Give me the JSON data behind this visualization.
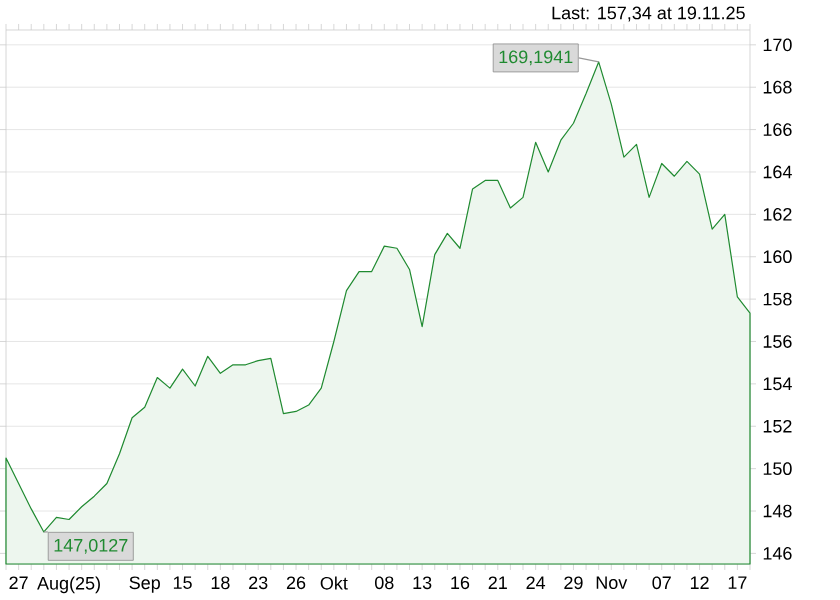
{
  "chart_data": {
    "type": "area",
    "categories": [
      null,
      "27",
      null,
      null,
      null,
      "Aug(25)",
      null,
      null,
      null,
      null,
      null,
      "Sep",
      null,
      null,
      "15",
      null,
      null,
      "18",
      null,
      null,
      "23",
      null,
      null,
      "26",
      null,
      null,
      "Okt",
      null,
      null,
      null,
      "08",
      null,
      null,
      "13",
      null,
      null,
      "16",
      null,
      null,
      "21",
      null,
      null,
      "24",
      null,
      null,
      "29",
      null,
      null,
      "Nov",
      null,
      null,
      null,
      "07",
      null,
      null,
      "12",
      null,
      null,
      "17",
      null
    ],
    "series": [
      {
        "color": "#1f8a30",
        "values": [
          150.5,
          149.3,
          148.1,
          147.0127,
          147.7,
          147.6,
          148.2,
          148.7,
          149.3,
          150.7,
          152.4,
          152.9,
          154.3,
          153.8,
          154.7,
          153.9,
          155.3,
          154.5,
          154.9,
          154.9,
          155.1,
          155.2,
          152.6,
          152.7,
          153.0,
          153.8,
          156.0,
          158.4,
          159.3,
          159.3,
          160.5,
          160.4,
          159.4,
          156.7,
          160.1,
          161.1,
          160.4,
          163.2,
          163.6,
          163.6,
          162.3,
          162.8,
          165.4,
          164.0,
          165.5,
          166.3,
          167.7,
          169.1941,
          167.2,
          164.7,
          165.3,
          162.8,
          164.4,
          163.8,
          164.5,
          163.9,
          161.3,
          162.0,
          158.1,
          157.34
        ]
      }
    ],
    "ylim": [
      145.5,
      170.7
    ],
    "yticks": [
      146,
      148,
      150,
      152,
      154,
      156,
      158,
      160,
      162,
      164,
      166,
      168,
      170
    ],
    "grid": "y",
    "annotations": [
      "Last: 157,34 at 19.11.25",
      {
        "text": "169,1941",
        "y": 169.1941
      },
      "147,0127"
    ]
  }
}
